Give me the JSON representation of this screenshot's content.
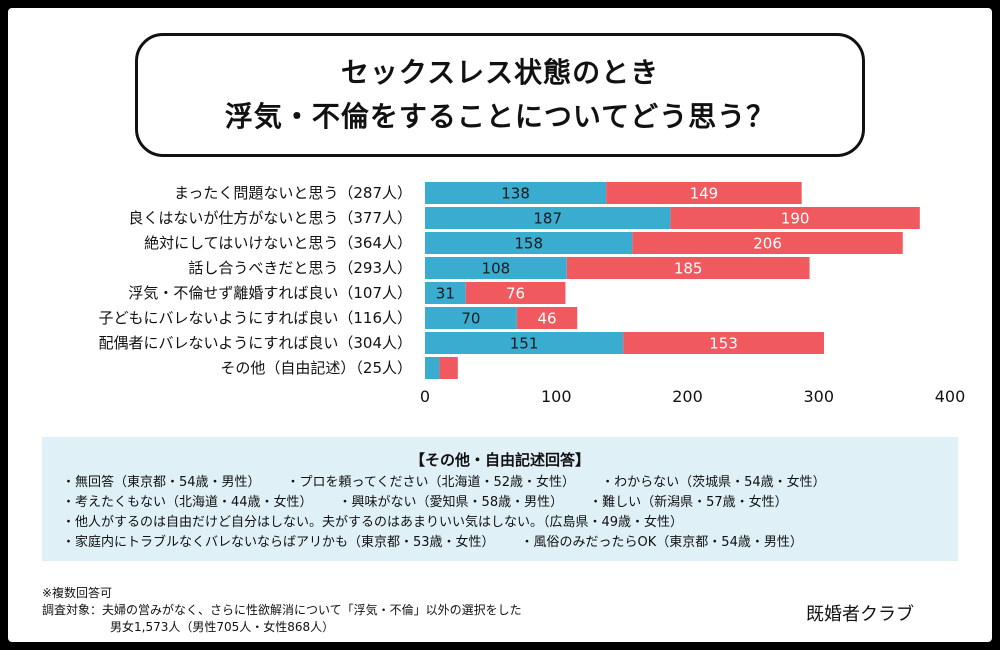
{
  "title": {
    "line1": "セックスレス状態のとき",
    "line2": "浮気・不倫をすることについてどう思う？"
  },
  "colors": {
    "male": "#3aaccf",
    "female": "#f05a5f"
  },
  "chart_data": {
    "type": "bar",
    "orientation": "horizontal",
    "stacked": true,
    "categories": [
      "まったく問題ないと思う（287人）",
      "良くはないが仕方がないと思う（377人）",
      "絶対にしてはいけないと思う（364人）",
      "話し合うべきだと思う（293人）",
      "浮気・不倫せず離婚すれば良い（107人）",
      "子どもにバレないようにすれば良い（116人）",
      "配偶者にバレないようにすれば良い（304人）",
      "その他（自由記述）（25人）"
    ],
    "series": [
      {
        "values": [
          138,
          187,
          158,
          108,
          31,
          70,
          151,
          11
        ],
        "labels": [
          "138",
          "187",
          "158",
          "108",
          "31",
          "70",
          "151",
          ""
        ],
        "color": "#3aaccf"
      },
      {
        "values": [
          149,
          190,
          206,
          185,
          76,
          46,
          153,
          14
        ],
        "labels": [
          "149",
          "190",
          "206",
          "185",
          "76",
          "46",
          "153",
          ""
        ],
        "color": "#f05a5f"
      }
    ],
    "xlim": [
      0,
      400
    ],
    "xticks": [
      "0",
      "100",
      "200",
      "300",
      "400"
    ],
    "grid": false,
    "legend": "none"
  },
  "free_answers": {
    "title": "【その他・自由記述回答】",
    "rows": [
      [
        "・無回答（東京都・54歳・男性）",
        "・プロを頼ってください（北海道・52歳・女性）",
        "・わからない（茨城県・54歳・女性）"
      ],
      [
        "・考えたくもない（北海道・44歳・女性）",
        "・興味がない（愛知県・58歳・男性）",
        "・難しい（新潟県・57歳・女性）"
      ],
      [
        "・他人がするのは自由だけど自分はしない。夫がするのはあまりいい気はしない。（広島県・49歳・女性）"
      ],
      [
        "・家庭内にトラブルなくバレないならばアリかも（東京都・53歳・女性）",
        "・風俗のみだったらOK（東京都・54歳・男性）"
      ]
    ]
  },
  "notes": {
    "line1": "※複数回答可",
    "line2": "調査対象：夫婦の営みがなく、さらに性欲解消について「浮気・不倫」以外の選択をした",
    "line3": "男女1,573人（男性705人・女性868人）"
  },
  "brand": "既婚者クラブ"
}
